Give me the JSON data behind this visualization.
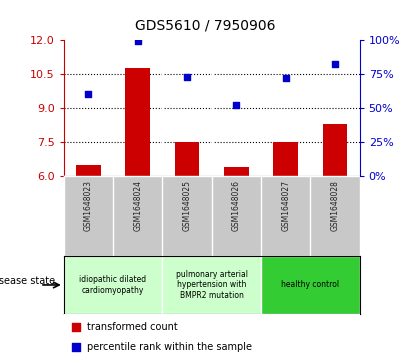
{
  "title": "GDS5610 / 7950906",
  "samples": [
    "GSM1648023",
    "GSM1648024",
    "GSM1648025",
    "GSM1648026",
    "GSM1648027",
    "GSM1648028"
  ],
  "transformed_count": [
    6.5,
    10.75,
    7.5,
    6.4,
    7.5,
    8.3
  ],
  "percentile_rank": [
    60,
    99,
    73,
    52,
    72,
    82
  ],
  "ylim_left": [
    6,
    12
  ],
  "ylim_right": [
    0,
    100
  ],
  "yticks_left": [
    6,
    7.5,
    9,
    10.5,
    12
  ],
  "yticks_right": [
    0,
    25,
    50,
    75,
    100
  ],
  "ytick_labels_right": [
    "0%",
    "25%",
    "50%",
    "75%",
    "100%"
  ],
  "bar_color": "#cc0000",
  "dot_color": "#0000cc",
  "disease_states": [
    {
      "label": "idiopathic dilated\ncardiomyopathy",
      "samples": [
        0,
        1
      ],
      "color": "#ccffcc"
    },
    {
      "label": "pulmonary arterial\nhypertension with\nBMPR2 mutation",
      "samples": [
        2,
        3
      ],
      "color": "#ccffcc"
    },
    {
      "label": "healthy control",
      "samples": [
        4,
        5
      ],
      "color": "#33cc33"
    }
  ],
  "bar_width": 0.5,
  "sample_label_color": "#222222",
  "left_axis_color": "#cc0000",
  "right_axis_color": "#0000cc",
  "label_disease_state": "disease state",
  "legend_bar_label": "transformed count",
  "legend_dot_label": "percentile rank within the sample",
  "sample_bg_color": "#c8c8c8"
}
